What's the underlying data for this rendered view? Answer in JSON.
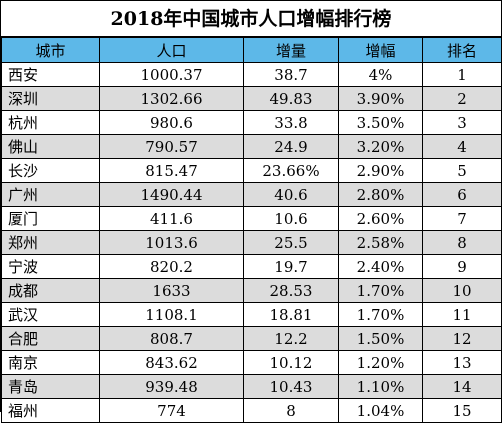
{
  "title": "2018年中国城市人口增幅排行榜",
  "headers": [
    "城市",
    "人口",
    "增量",
    "增幅",
    "排名"
  ],
  "rows": [
    [
      "西安",
      "1000.37",
      "38.7",
      "4%",
      "1"
    ],
    [
      "深圳",
      "1302.66",
      "49.83",
      "3.90%",
      "2"
    ],
    [
      "杭州",
      "980.6",
      "33.8",
      "3.50%",
      "3"
    ],
    [
      "佛山",
      "790.57",
      "24.9",
      "3.20%",
      "4"
    ],
    [
      "长沙",
      "815.47",
      "23.66%",
      "2.90%",
      "5"
    ],
    [
      "广州",
      "1490.44",
      "40.6",
      "2.80%",
      "6"
    ],
    [
      "厦门",
      "411.6",
      "10.6",
      "2.60%",
      "7"
    ],
    [
      "郑州",
      "1013.6",
      "25.5",
      "2.58%",
      "8"
    ],
    [
      "宁波",
      "820.2",
      "19.7",
      "2.40%",
      "9"
    ],
    [
      "成都",
      "1633",
      "28.53",
      "1.70%",
      "10"
    ],
    [
      "武汉",
      "1108.1",
      "18.81",
      "1.70%",
      "11"
    ],
    [
      "合肥",
      "808.7",
      "12.2",
      "1.50%",
      "12"
    ],
    [
      "南京",
      "843.62",
      "10.12",
      "1.20%",
      "13"
    ],
    [
      "青岛",
      "939.48",
      "10.43",
      "1.10%",
      "14"
    ],
    [
      "福州",
      "774",
      "8",
      "1.04%",
      "15"
    ]
  ],
  "colors": {
    "header_bg": "#5db8e8",
    "stripe_bg": "#dcdcdc",
    "border": "#000000"
  }
}
